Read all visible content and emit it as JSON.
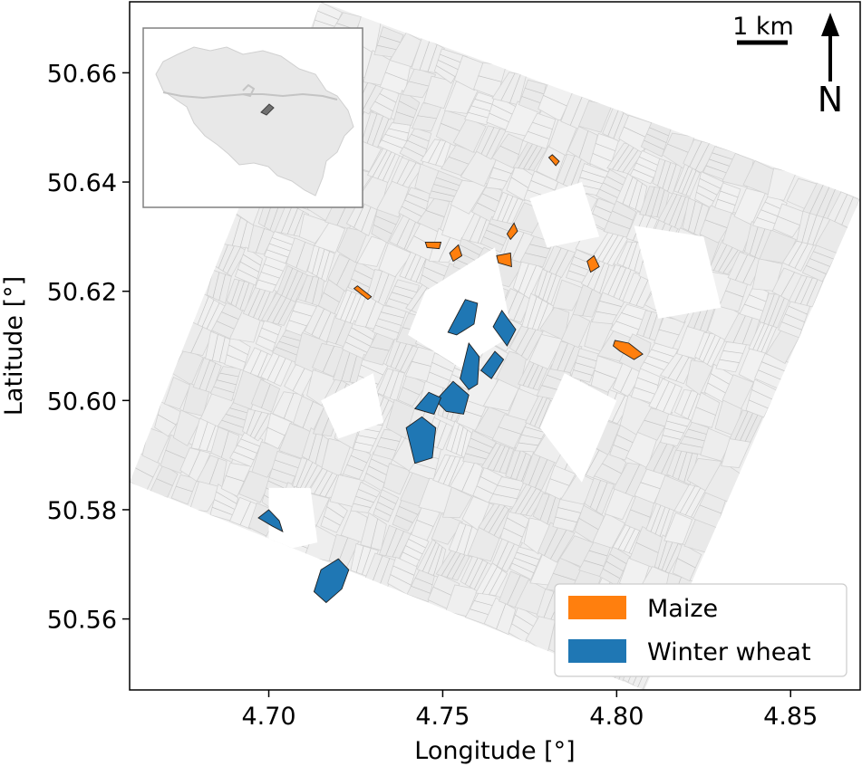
{
  "map": {
    "x_axis_label": "Longitude [°]",
    "y_axis_label": "Latitude [°]",
    "x_range": [
      4.66,
      4.87
    ],
    "y_range": [
      50.547,
      50.673
    ],
    "x_ticks": [
      {
        "value": 4.7,
        "label": "4.70"
      },
      {
        "value": 4.75,
        "label": "4.75"
      },
      {
        "value": 4.8,
        "label": "4.80"
      },
      {
        "value": 4.85,
        "label": "4.85"
      }
    ],
    "y_ticks": [
      {
        "value": 50.56,
        "label": "50.56"
      },
      {
        "value": 50.58,
        "label": "50.58"
      },
      {
        "value": 50.6,
        "label": "50.60"
      },
      {
        "value": 50.62,
        "label": "50.62"
      },
      {
        "value": 50.64,
        "label": "50.64"
      },
      {
        "value": 50.66,
        "label": "50.66"
      }
    ],
    "scale_bar_label": "1 km",
    "north_label": "N",
    "legend": [
      {
        "label": "Maize",
        "color": "#ff7f0e"
      },
      {
        "label": "Winter wheat",
        "color": "#1f77b4"
      }
    ],
    "inset": {
      "country": "Belgium",
      "highlight_color": "#606060"
    }
  },
  "chart_data": {
    "type": "map",
    "xlabel": "Longitude [°]",
    "ylabel": "Latitude [°]",
    "xlim": [
      4.66,
      4.87
    ],
    "ylim": [
      50.547,
      50.673
    ],
    "study_area_corners": [
      [
        4.66,
        50.585
      ],
      [
        4.715,
        50.673
      ],
      [
        4.87,
        50.637
      ],
      [
        4.808,
        50.547
      ]
    ],
    "series": [
      {
        "name": "Maize",
        "color": "#ff7f0e",
        "fields": [
          [
            [
              4.7245,
              50.6205
            ],
            [
              4.7285,
              50.6185
            ],
            [
              4.7295,
              50.619
            ],
            [
              4.7255,
              50.621
            ]
          ],
          [
            [
              4.745,
              50.629
            ],
            [
              4.7495,
              50.629
            ],
            [
              4.749,
              50.6278
            ],
            [
              4.7455,
              50.628
            ]
          ],
          [
            [
              4.752,
              50.627
            ],
            [
              4.7545,
              50.6285
            ],
            [
              4.7555,
              50.6265
            ],
            [
              4.753,
              50.6255
            ]
          ],
          [
            [
              4.7655,
              50.6265
            ],
            [
              4.7695,
              50.627
            ],
            [
              4.7698,
              50.6245
            ],
            [
              4.766,
              50.6252
            ]
          ],
          [
            [
              4.7685,
              50.6305
            ],
            [
              4.7705,
              50.6325
            ],
            [
              4.7715,
              50.631
            ],
            [
              4.7695,
              50.6295
            ]
          ],
          [
            [
              4.7805,
              50.6445
            ],
            [
              4.7825,
              50.643
            ],
            [
              4.7835,
              50.6438
            ],
            [
              4.7815,
              50.645
            ]
          ],
          [
            [
              4.7915,
              50.6255
            ],
            [
              4.7935,
              50.6265
            ],
            [
              4.795,
              50.6245
            ],
            [
              4.7925,
              50.6235
            ]
          ],
          [
            [
              4.7995,
              50.611
            ],
            [
              4.8035,
              50.6105
            ],
            [
              4.8075,
              50.6085
            ],
            [
              4.805,
              50.6075
            ],
            [
              4.801,
              50.609
            ],
            [
              4.799,
              50.61
            ]
          ]
        ]
      },
      {
        "name": "Winter wheat",
        "color": "#1f77b4",
        "fields": [
          [
            [
              4.7515,
              50.6125
            ],
            [
              4.7565,
              50.6185
            ],
            [
              4.76,
              50.6178
            ],
            [
              4.759,
              50.614
            ],
            [
              4.754,
              50.612
            ]
          ],
          [
            [
              4.7645,
              50.6135
            ],
            [
              4.767,
              50.6165
            ],
            [
              4.771,
              50.613
            ],
            [
              4.7685,
              50.61
            ]
          ],
          [
            [
              4.761,
              50.6055
            ],
            [
              4.765,
              50.609
            ],
            [
              4.7675,
              50.6075
            ],
            [
              4.764,
              50.604
            ]
          ],
          [
            [
              4.755,
              50.604
            ],
            [
              4.7575,
              50.6105
            ],
            [
              4.7605,
              50.608
            ],
            [
              4.76,
              50.603
            ],
            [
              4.7575,
              50.602
            ]
          ],
          [
            [
              4.748,
              50.6
            ],
            [
              4.753,
              50.6035
            ],
            [
              4.7575,
              50.601
            ],
            [
              4.756,
              50.5975
            ],
            [
              4.751,
              50.598
            ]
          ],
          [
            [
              4.742,
              50.5985
            ],
            [
              4.746,
              50.6015
            ],
            [
              4.7495,
              50.6005
            ],
            [
              4.7475,
              50.5975
            ]
          ],
          [
            [
              4.7395,
              50.595
            ],
            [
              4.744,
              50.597
            ],
            [
              4.748,
              50.595
            ],
            [
              4.747,
              50.5895
            ],
            [
              4.742,
              50.5885
            ]
          ],
          [
            [
              4.697,
              50.5785
            ],
            [
              4.7,
              50.58
            ],
            [
              4.703,
              50.578
            ],
            [
              4.704,
              50.576
            ],
            [
              4.701,
              50.577
            ]
          ],
          [
            [
              4.713,
              50.565
            ],
            [
              4.715,
              50.569
            ],
            [
              4.72,
              50.571
            ],
            [
              4.723,
              50.569
            ],
            [
              4.721,
              50.5655
            ],
            [
              4.7165,
              50.563
            ]
          ]
        ]
      }
    ]
  }
}
